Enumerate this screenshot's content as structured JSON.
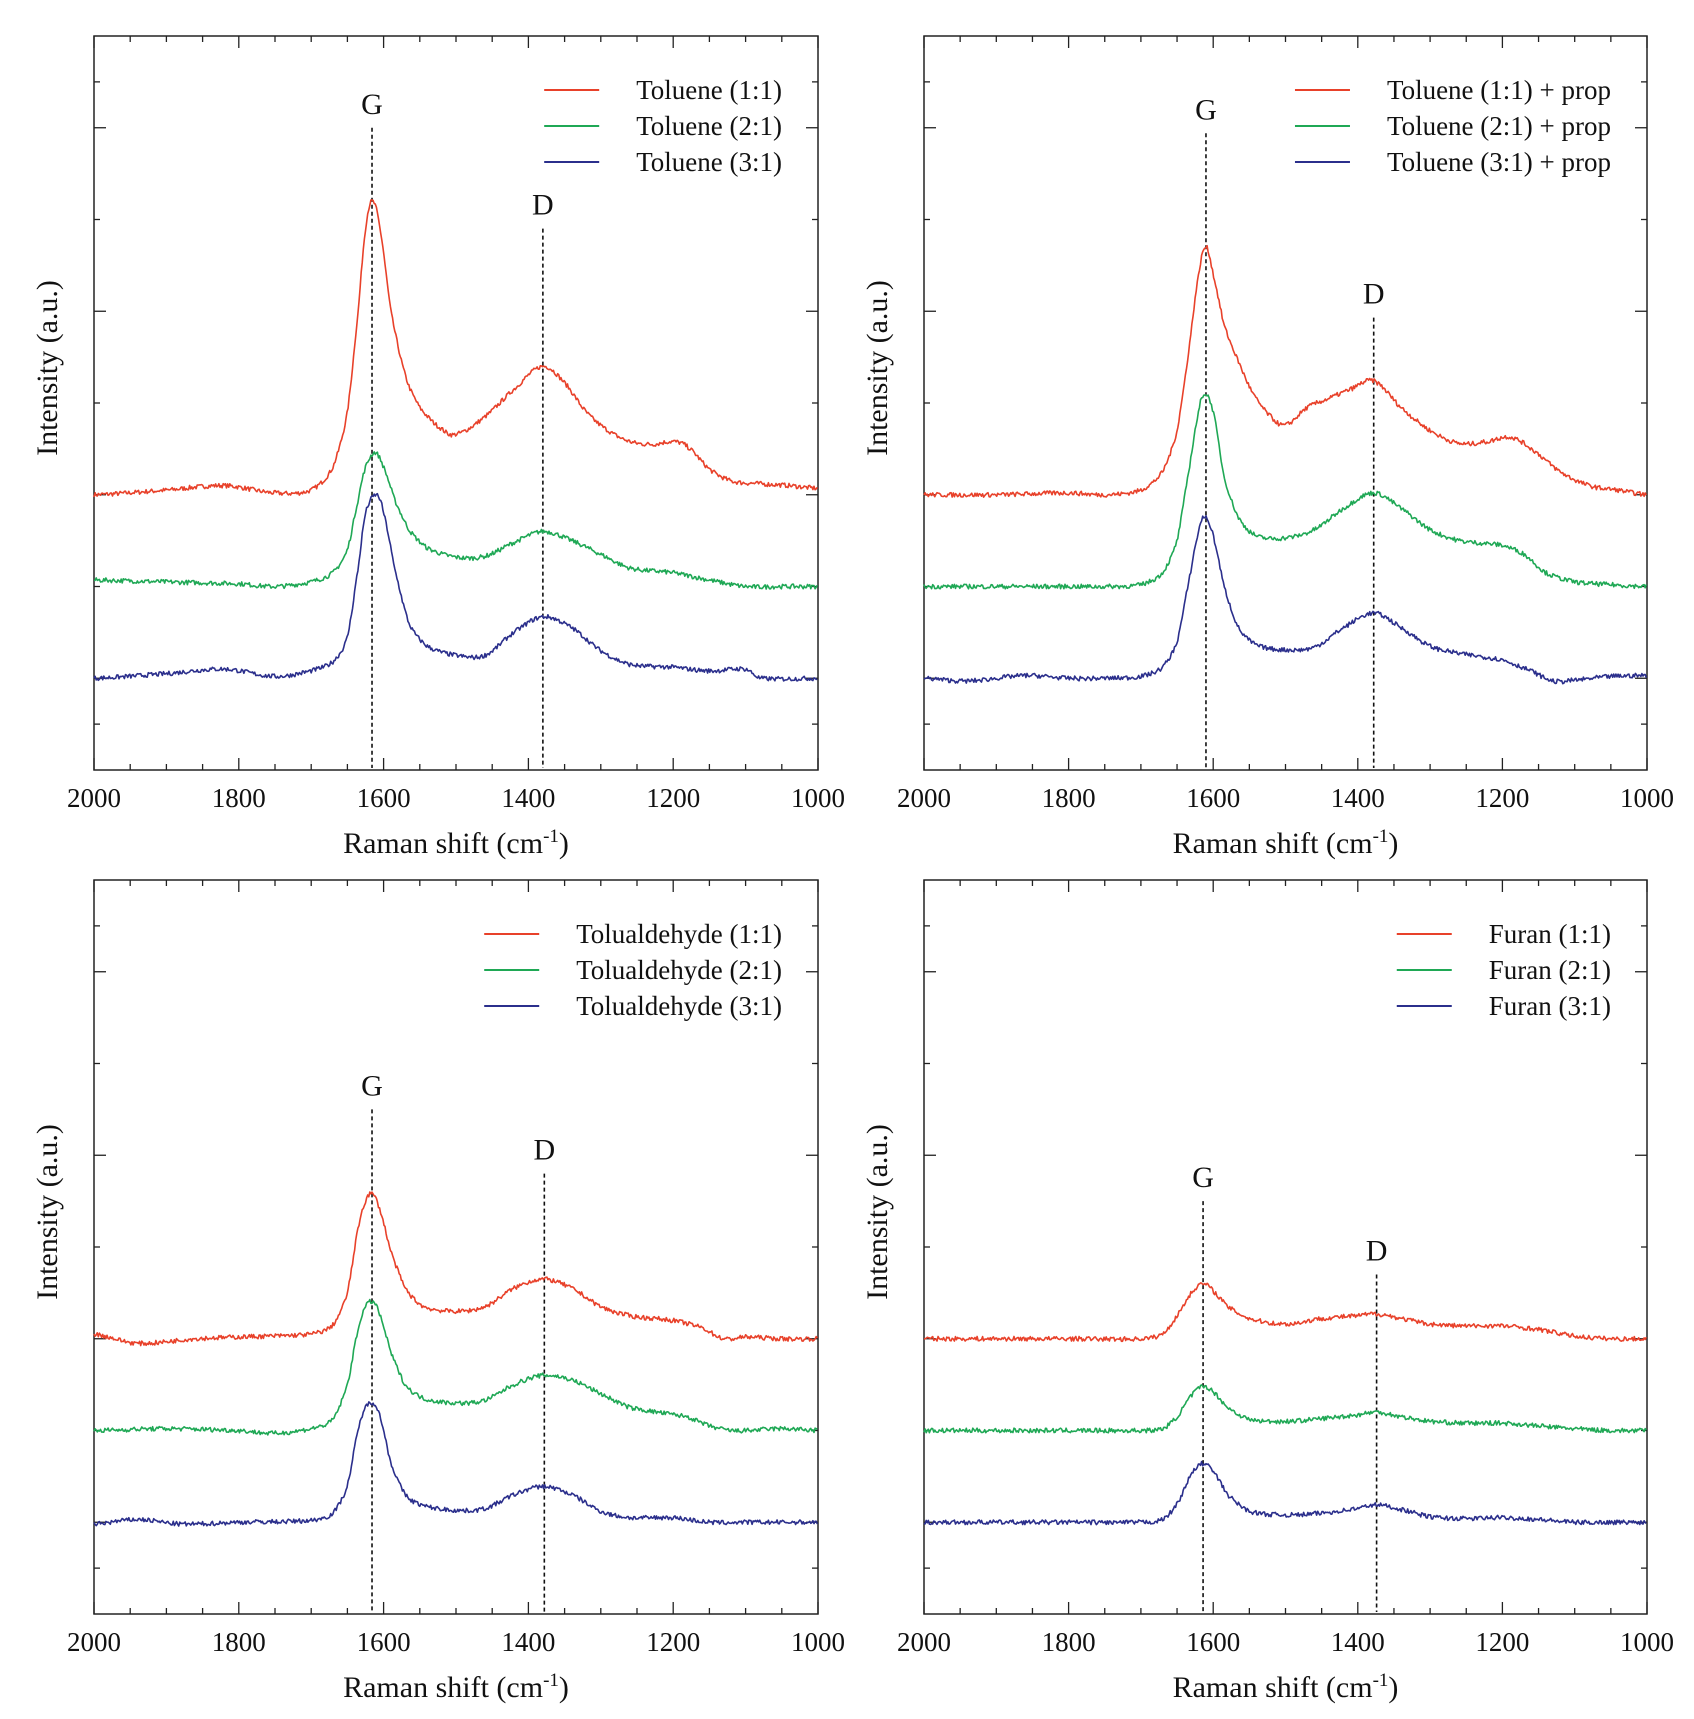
{
  "chart_data": [
    {
      "type": "line",
      "xlabel": {
        "text": "Raman shift (cm",
        "sup": "-1",
        "close": ")"
      },
      "ylabel": "Intensity (a.u.)",
      "xlim": [
        2000,
        1000
      ],
      "x_reversed": true,
      "xticks": [
        2000,
        1800,
        1600,
        1400,
        1200,
        1000
      ],
      "ylim": [
        0,
        8
      ],
      "y_tick_labels": false,
      "legend": "top-right",
      "annotations": [
        {
          "label": "G",
          "x": 1616,
          "y_top": 7.0
        },
        {
          "label": "D",
          "x": 1380,
          "y_top": 5.9
        }
      ],
      "series": [
        {
          "name": "Toluene (1:1)",
          "color": "#e8412a",
          "x": [
            2000,
            1900,
            1820,
            1750,
            1700,
            1670,
            1650,
            1635,
            1625,
            1616,
            1605,
            1590,
            1570,
            1550,
            1520,
            1500,
            1460,
            1420,
            1380,
            1350,
            1320,
            1290,
            1260,
            1230,
            1200,
            1180,
            1150,
            1120,
            1080,
            1040,
            1000
          ],
          "y": [
            3.0,
            3.05,
            3.1,
            3.02,
            3.05,
            3.3,
            3.9,
            5.0,
            5.9,
            6.2,
            5.9,
            5.0,
            4.3,
            3.95,
            3.72,
            3.66,
            3.85,
            4.15,
            4.4,
            4.22,
            3.9,
            3.7,
            3.58,
            3.55,
            3.58,
            3.52,
            3.28,
            3.15,
            3.12,
            3.1,
            3.07
          ]
        },
        {
          "name": "Toluene (2:1)",
          "color": "#1fa855",
          "x": [
            2000,
            1900,
            1800,
            1750,
            1700,
            1670,
            1650,
            1635,
            1625,
            1612,
            1600,
            1585,
            1565,
            1540,
            1500,
            1460,
            1420,
            1380,
            1340,
            1300,
            1260,
            1200,
            1150,
            1100,
            1050,
            1000
          ],
          "y": [
            2.07,
            2.05,
            2.03,
            2.0,
            2.05,
            2.15,
            2.4,
            2.95,
            3.3,
            3.46,
            3.3,
            2.95,
            2.62,
            2.42,
            2.32,
            2.33,
            2.48,
            2.6,
            2.5,
            2.35,
            2.2,
            2.15,
            2.07,
            2.0,
            2.0,
            2.0
          ]
        },
        {
          "name": "Toluene (3:1)",
          "color": "#2b2f8c",
          "x": [
            2000,
            1900,
            1820,
            1750,
            1700,
            1670,
            1650,
            1635,
            1625,
            1610,
            1600,
            1585,
            1565,
            1540,
            1500,
            1460,
            1420,
            1380,
            1340,
            1300,
            1260,
            1200,
            1150,
            1100,
            1080,
            1000
          ],
          "y": [
            1.0,
            1.05,
            1.1,
            1.02,
            1.08,
            1.18,
            1.45,
            2.2,
            2.8,
            3.0,
            2.8,
            2.2,
            1.6,
            1.35,
            1.25,
            1.25,
            1.5,
            1.67,
            1.55,
            1.3,
            1.15,
            1.12,
            1.08,
            1.1,
            1.0,
            1.0
          ]
        }
      ]
    },
    {
      "type": "line",
      "xlabel": {
        "text": "Raman shift (cm",
        "sup": "-1",
        "close": ")"
      },
      "ylabel": "Intensity (a.u.)",
      "xlim": [
        2000,
        1000
      ],
      "x_reversed": true,
      "xticks": [
        2000,
        1800,
        1600,
        1400,
        1200,
        1000
      ],
      "ylim": [
        0,
        8
      ],
      "y_tick_labels": false,
      "legend": "top-right",
      "annotations": [
        {
          "label": "G",
          "x": 1610,
          "y_top": 6.94
        },
        {
          "label": "D",
          "x": 1378,
          "y_top": 4.93
        }
      ],
      "series": [
        {
          "name": "Toluene (1:1) + prop",
          "color": "#e8412a",
          "x": [
            2000,
            1900,
            1800,
            1750,
            1700,
            1670,
            1650,
            1635,
            1620,
            1610,
            1600,
            1585,
            1565,
            1545,
            1520,
            1500,
            1470,
            1440,
            1410,
            1378,
            1340,
            1300,
            1260,
            1220,
            1190,
            1160,
            1120,
            1080,
            1040,
            1000
          ],
          "y": [
            3.0,
            3.0,
            3.02,
            3.0,
            3.05,
            3.25,
            3.7,
            4.5,
            5.4,
            5.7,
            5.4,
            4.85,
            4.45,
            4.1,
            3.85,
            3.76,
            3.95,
            4.05,
            4.15,
            4.24,
            3.95,
            3.7,
            3.56,
            3.58,
            3.63,
            3.5,
            3.25,
            3.1,
            3.05,
            3.0
          ]
        },
        {
          "name": "Toluene (2:1) + prop",
          "color": "#1fa855",
          "x": [
            2000,
            1900,
            1800,
            1750,
            1700,
            1670,
            1650,
            1635,
            1620,
            1612,
            1600,
            1585,
            1565,
            1540,
            1500,
            1460,
            1420,
            1378,
            1340,
            1300,
            1260,
            1200,
            1170,
            1140,
            1100,
            1050,
            1000
          ],
          "y": [
            2.0,
            2.0,
            2.0,
            2.0,
            2.02,
            2.15,
            2.5,
            3.2,
            3.9,
            4.1,
            3.9,
            3.2,
            2.75,
            2.55,
            2.53,
            2.62,
            2.85,
            3.02,
            2.85,
            2.62,
            2.5,
            2.45,
            2.35,
            2.15,
            2.05,
            2.02,
            2.0
          ]
        },
        {
          "name": "Toluene (3:1) + prop",
          "color": "#2b2f8c",
          "x": [
            2000,
            1940,
            1860,
            1800,
            1750,
            1700,
            1670,
            1650,
            1635,
            1620,
            1612,
            1600,
            1585,
            1565,
            1540,
            1500,
            1460,
            1420,
            1378,
            1340,
            1300,
            1260,
            1200,
            1160,
            1130,
            1100,
            1050,
            1000
          ],
          "y": [
            1.0,
            0.97,
            1.03,
            1.0,
            1.0,
            1.02,
            1.12,
            1.4,
            2.0,
            2.6,
            2.76,
            2.55,
            2.0,
            1.55,
            1.36,
            1.31,
            1.34,
            1.55,
            1.71,
            1.55,
            1.35,
            1.27,
            1.2,
            1.08,
            0.97,
            0.98,
            1.02,
            1.03
          ]
        }
      ]
    },
    {
      "type": "line",
      "xlabel": {
        "text": "Raman shift (cm",
        "sup": "-1",
        "close": ")"
      },
      "ylabel": "Intensity (a.u.)",
      "xlim": [
        2000,
        1000
      ],
      "x_reversed": true,
      "xticks": [
        2000,
        1800,
        1600,
        1400,
        1200,
        1000
      ],
      "ylim": [
        0,
        8
      ],
      "y_tick_labels": false,
      "legend": "top-right",
      "annotations": [
        {
          "label": "G",
          "x": 1616,
          "y_top": 5.5
        },
        {
          "label": "D",
          "x": 1378,
          "y_top": 4.8
        }
      ],
      "series": [
        {
          "name": "Tolualdehyde (1:1)",
          "color": "#e8412a",
          "x": [
            2000,
            1940,
            1860,
            1800,
            1700,
            1670,
            1650,
            1635,
            1625,
            1616,
            1605,
            1590,
            1570,
            1545,
            1500,
            1460,
            1420,
            1380,
            1340,
            1300,
            1260,
            1200,
            1160,
            1130,
            1100,
            1050,
            1000
          ],
          "y": [
            3.05,
            2.95,
            3.0,
            3.02,
            3.05,
            3.15,
            3.5,
            4.2,
            4.5,
            4.58,
            4.4,
            3.95,
            3.55,
            3.35,
            3.3,
            3.35,
            3.55,
            3.65,
            3.55,
            3.35,
            3.25,
            3.2,
            3.12,
            3.0,
            3.02,
            3.0,
            3.0
          ]
        },
        {
          "name": "Tolualdehyde (2:1)",
          "color": "#1fa855",
          "x": [
            2000,
            1900,
            1800,
            1750,
            1700,
            1670,
            1650,
            1635,
            1625,
            1614,
            1605,
            1590,
            1570,
            1545,
            1500,
            1460,
            1420,
            1380,
            1340,
            1300,
            1260,
            1180,
            1150,
            1120,
            1100,
            1050,
            1000
          ],
          "y": [
            2.0,
            2.02,
            2.0,
            1.97,
            2.02,
            2.12,
            2.5,
            3.1,
            3.35,
            3.4,
            3.25,
            2.85,
            2.5,
            2.35,
            2.3,
            2.33,
            2.5,
            2.6,
            2.55,
            2.4,
            2.25,
            2.15,
            2.05,
            2.0,
            2.0,
            2.02,
            2.0
          ]
        },
        {
          "name": "Tolualdehyde (3:1)",
          "color": "#2b2f8c",
          "x": [
            2000,
            1940,
            1880,
            1800,
            1700,
            1670,
            1650,
            1635,
            1625,
            1614,
            1605,
            1590,
            1570,
            1545,
            1500,
            1460,
            1420,
            1380,
            1340,
            1300,
            1260,
            1200,
            1150,
            1100,
            1050,
            1000
          ],
          "y": [
            0.98,
            1.03,
            0.98,
            1.0,
            1.02,
            1.1,
            1.4,
            2.0,
            2.25,
            2.3,
            2.15,
            1.65,
            1.3,
            1.18,
            1.13,
            1.15,
            1.3,
            1.39,
            1.3,
            1.12,
            1.05,
            1.05,
            1.0,
            1.0,
            1.0,
            1.0
          ]
        }
      ]
    },
    {
      "type": "line",
      "xlabel": {
        "text": "Raman shift (cm",
        "sup": "-1",
        "close": ")"
      },
      "ylabel": "Intensity (a.u.)",
      "xlim": [
        2000,
        1000
      ],
      "x_reversed": true,
      "xticks": [
        2000,
        1800,
        1600,
        1400,
        1200,
        1000
      ],
      "ylim": [
        0,
        8
      ],
      "y_tick_labels": false,
      "legend": "top-right",
      "annotations": [
        {
          "label": "G",
          "x": 1614,
          "y_top": 4.5
        },
        {
          "label": "D",
          "x": 1374,
          "y_top": 3.7
        }
      ],
      "series": [
        {
          "name": "Furan (1:1)",
          "color": "#e8412a",
          "x": [
            2000,
            1900,
            1800,
            1700,
            1670,
            1650,
            1630,
            1614,
            1600,
            1580,
            1550,
            1500,
            1450,
            1400,
            1374,
            1340,
            1300,
            1250,
            1200,
            1150,
            1100,
            1050,
            1000
          ],
          "y": [
            3.0,
            3.0,
            3.0,
            3.0,
            3.05,
            3.25,
            3.5,
            3.6,
            3.52,
            3.35,
            3.22,
            3.16,
            3.22,
            3.25,
            3.27,
            3.22,
            3.16,
            3.14,
            3.14,
            3.1,
            3.03,
            3.0,
            3.0
          ]
        },
        {
          "name": "Furan (2:1)",
          "color": "#1fa855",
          "x": [
            2000,
            1900,
            1800,
            1700,
            1670,
            1650,
            1630,
            1614,
            1600,
            1580,
            1550,
            1500,
            1450,
            1400,
            1374,
            1340,
            1300,
            1250,
            1200,
            1150,
            1100,
            1050,
            1000
          ],
          "y": [
            2.0,
            2.0,
            2.0,
            2.0,
            2.02,
            2.15,
            2.38,
            2.48,
            2.42,
            2.25,
            2.12,
            2.1,
            2.13,
            2.17,
            2.2,
            2.15,
            2.1,
            2.08,
            2.08,
            2.05,
            2.02,
            2.0,
            2.0
          ]
        },
        {
          "name": "Furan (3:1)",
          "color": "#2b2f8c",
          "x": [
            2000,
            1900,
            1800,
            1700,
            1670,
            1650,
            1630,
            1614,
            1600,
            1580,
            1550,
            1500,
            1450,
            1400,
            1374,
            1340,
            1300,
            1250,
            1200,
            1150,
            1100,
            1050,
            1000
          ],
          "y": [
            1.0,
            1.0,
            1.0,
            1.0,
            1.03,
            1.2,
            1.52,
            1.64,
            1.55,
            1.3,
            1.12,
            1.08,
            1.1,
            1.15,
            1.19,
            1.14,
            1.06,
            1.04,
            1.05,
            1.03,
            1.0,
            1.0,
            1.0
          ]
        }
      ]
    }
  ]
}
